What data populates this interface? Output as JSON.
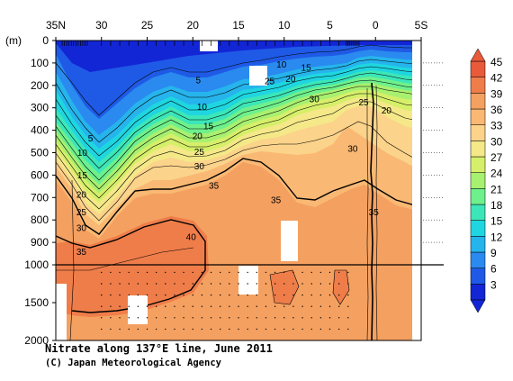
{
  "chart_data": {
    "type": "heatmap",
    "title": "Nitrate along 137°E line, June 2011",
    "credit": "(C) Japan Meteorological Agency",
    "x": {
      "ticks": [
        {
          "value": 35,
          "label": "35N"
        },
        {
          "value": 30,
          "label": "30"
        },
        {
          "value": 25,
          "label": "25"
        },
        {
          "value": 20,
          "label": "20"
        },
        {
          "value": 15,
          "label": "15"
        },
        {
          "value": 10,
          "label": "10"
        },
        {
          "value": 5,
          "label": "5"
        },
        {
          "value": 0,
          "label": "0"
        },
        {
          "value": -5,
          "label": "5S"
        }
      ],
      "range": [
        35,
        -5
      ]
    },
    "y": {
      "unit_label": "(m)",
      "ticks_upper": [
        0,
        100,
        200,
        300,
        400,
        500,
        600,
        700,
        800,
        900,
        1000
      ],
      "ticks_lower": [
        1500,
        2000
      ],
      "range": [
        0,
        2000
      ],
      "break_depth": 1000
    },
    "colorbar": {
      "ticks": [
        45,
        42,
        39,
        36,
        33,
        30,
        27,
        24,
        21,
        18,
        15,
        12,
        9,
        6,
        3
      ],
      "colors": [
        "#1226d6",
        "#1f5ae6",
        "#2a8aef",
        "#26b4ec",
        "#1fd6e0",
        "#3ce6b8",
        "#6ef08c",
        "#a8f070",
        "#d6ef6a",
        "#f4e888",
        "#fbd38a",
        "#f9b873",
        "#f4a060",
        "#ef7d4a",
        "#e85a3a"
      ],
      "bound_low": 3,
      "bound_high": 45
    },
    "contour_labels": [
      {
        "lat": 19.4,
        "depth": 180,
        "text": "5"
      },
      {
        "lat": 31.2,
        "depth": 440,
        "text": "5"
      },
      {
        "lat": 10.3,
        "depth": 110,
        "text": "10"
      },
      {
        "lat": 7.6,
        "depth": 125,
        "text": "15"
      },
      {
        "lat": 9.3,
        "depth": 175,
        "text": "20"
      },
      {
        "lat": 11.6,
        "depth": 185,
        "text": "25"
      },
      {
        "lat": 6.7,
        "depth": 265,
        "text": "30"
      },
      {
        "lat": 19.0,
        "depth": 300,
        "text": "10"
      },
      {
        "lat": 18.3,
        "depth": 385,
        "text": "15"
      },
      {
        "lat": 19.5,
        "depth": 430,
        "text": "20"
      },
      {
        "lat": 19.3,
        "depth": 500,
        "text": "25"
      },
      {
        "lat": 19.3,
        "depth": 565,
        "text": "30"
      },
      {
        "lat": 17.7,
        "depth": 650,
        "text": "35"
      },
      {
        "lat": 32.1,
        "depth": 505,
        "text": "10"
      },
      {
        "lat": 32.1,
        "depth": 605,
        "text": "15"
      },
      {
        "lat": 32.2,
        "depth": 690,
        "text": "20"
      },
      {
        "lat": 32.2,
        "depth": 770,
        "text": "25"
      },
      {
        "lat": 32.2,
        "depth": 840,
        "text": "30"
      },
      {
        "lat": 32.2,
        "depth": 945,
        "text": "35"
      },
      {
        "lat": 20.2,
        "depth": 880,
        "text": "40"
      },
      {
        "lat": 10.9,
        "depth": 715,
        "text": "35"
      },
      {
        "lat": 1.3,
        "depth": 280,
        "text": "25"
      },
      {
        "lat": -1.2,
        "depth": 315,
        "text": "20"
      },
      {
        "lat": 2.5,
        "depth": 485,
        "text": "30"
      },
      {
        "lat": 0.2,
        "depth": 770,
        "text": "35"
      }
    ]
  }
}
